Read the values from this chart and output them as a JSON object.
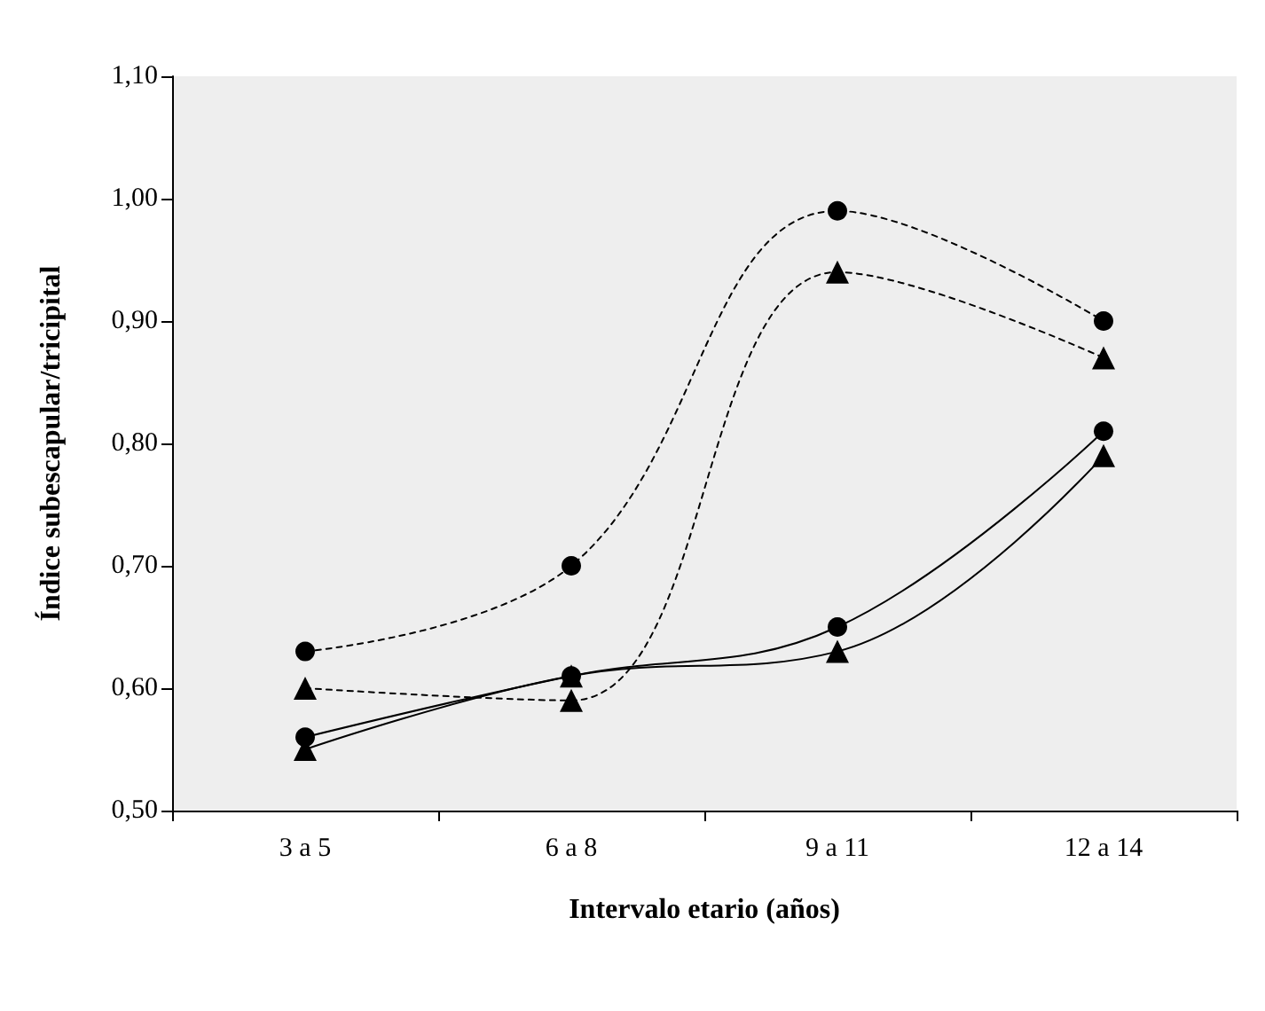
{
  "chart_data": {
    "type": "line",
    "xlabel": "Intervalo etario (años)",
    "ylabel": "Índice subescapular/tricipital",
    "categories": [
      "3 a 5",
      "6 a 8",
      "9 a 11",
      "12 a 14"
    ],
    "series": [
      {
        "color": "#000000",
        "marker": "circle",
        "line_style": "dotted",
        "values": [
          0.63,
          0.7,
          0.99,
          0.9
        ]
      },
      {
        "color": "#000000",
        "marker": "triangle",
        "line_style": "dotted",
        "values": [
          0.6,
          0.59,
          0.94,
          0.87
        ]
      },
      {
        "color": "#000000",
        "marker": "circle",
        "line_style": "solid",
        "values": [
          0.56,
          0.61,
          0.65,
          0.81
        ]
      },
      {
        "color": "#000000",
        "marker": "triangle",
        "line_style": "solid",
        "values": [
          0.55,
          0.61,
          0.63,
          0.79
        ]
      }
    ],
    "ylim": [
      0.5,
      1.1
    ],
    "yticks": [
      {
        "value": 0.5,
        "label": "0,50"
      },
      {
        "value": 0.6,
        "label": "0,60"
      },
      {
        "value": 0.7,
        "label": "0,70"
      },
      {
        "value": 0.8,
        "label": "0,80"
      },
      {
        "value": 0.9,
        "label": "0,90"
      },
      {
        "value": 1.0,
        "label": "1,00"
      },
      {
        "value": 1.1,
        "label": "1,10"
      }
    ],
    "grid": false
  }
}
